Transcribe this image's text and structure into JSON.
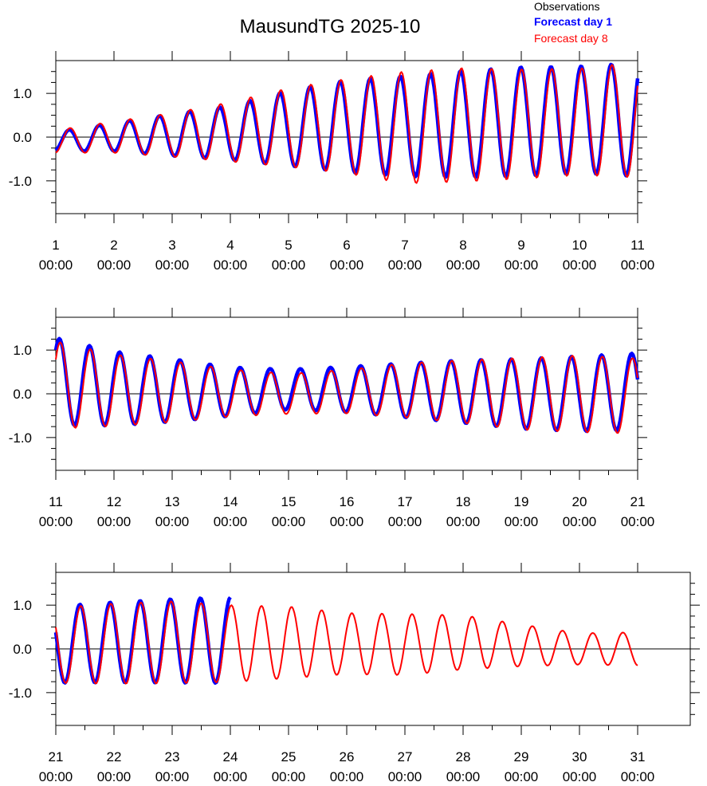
{
  "chart_data": {
    "type": "line",
    "title": "MausundTG 2025-10",
    "legend": {
      "placement": "top-right",
      "entries": [
        {
          "label": "Observations",
          "color": "#000000",
          "bold": false
        },
        {
          "label": "Forecast day 1",
          "color": "#0000ff",
          "bold": true
        },
        {
          "label": "Forecast day 8",
          "color": "#ff0000",
          "bold": false
        }
      ]
    },
    "y_ticks": [
      1.0,
      0.0,
      -1.0
    ],
    "y_tick_labels": [
      "1.0",
      "0.0",
      "-1.0"
    ],
    "ylim": [
      -1.75,
      1.75
    ],
    "grid": false,
    "tidal": {
      "cycles_per_day": 1.932,
      "forecast_day1_color": "#0000ff",
      "forecast_day8_color": "#ff0000"
    },
    "panels": [
      {
        "xlim": [
          1,
          11
        ],
        "tick_days": [
          "1",
          "2",
          "3",
          "4",
          "5",
          "6",
          "7",
          "8",
          "9",
          "10",
          "11"
        ],
        "tick_time": "00:00",
        "series": [
          {
            "name": "Forecast day 1",
            "x_range": [
              1,
              11
            ],
            "amplitude_days": [
              1,
              2,
              3,
              4,
              5,
              6,
              7,
              8,
              9,
              10,
              11
            ],
            "amplitude": [
              0.22,
              0.32,
              0.48,
              0.62,
              0.86,
              1.05,
              1.15,
              1.22,
              1.25,
              1.22,
              1.3
            ],
            "mean": [
              -0.1,
              0.0,
              0.05,
              0.1,
              0.2,
              0.25,
              0.25,
              0.3,
              0.35,
              0.4,
              0.4
            ]
          },
          {
            "name": "Forecast day 8",
            "x_range": [
              1,
              11
            ],
            "amplitude_days": [
              1,
              2,
              3,
              4,
              5,
              6,
              7,
              8,
              9,
              10,
              11
            ],
            "amplitude": [
              0.26,
              0.36,
              0.5,
              0.68,
              0.9,
              1.08,
              1.28,
              1.3,
              1.25,
              1.22,
              1.32
            ],
            "mean": [
              -0.1,
              0.0,
              0.05,
              0.12,
              0.22,
              0.25,
              0.22,
              0.28,
              0.3,
              0.35,
              0.4
            ]
          }
        ]
      },
      {
        "xlim": [
          11,
          21
        ],
        "tick_days": [
          "11",
          "12",
          "13",
          "14",
          "15",
          "16",
          "17",
          "18",
          "19",
          "20",
          "21"
        ],
        "tick_time": "00:00",
        "series": [
          {
            "name": "Forecast day 1",
            "x_range": [
              11,
              21
            ],
            "amplitude_days": [
              11,
              12,
              13,
              14,
              15,
              16,
              17,
              18,
              19,
              20,
              21
            ],
            "amplitude": [
              1.0,
              0.85,
              0.72,
              0.56,
              0.46,
              0.52,
              0.62,
              0.72,
              0.8,
              0.86,
              0.88
            ],
            "mean": [
              0.28,
              0.12,
              0.08,
              0.05,
              0.1,
              0.1,
              0.08,
              0.05,
              0.0,
              0.0,
              0.05
            ]
          },
          {
            "name": "Forecast day 8",
            "x_range": [
              11,
              21
            ],
            "amplitude_days": [
              11,
              12,
              13,
              14,
              15,
              16,
              17,
              18,
              19,
              20,
              21
            ],
            "amplitude": [
              1.0,
              0.82,
              0.7,
              0.54,
              0.46,
              0.5,
              0.62,
              0.72,
              0.82,
              0.88,
              0.86
            ],
            "mean": [
              0.2,
              0.08,
              0.05,
              0.02,
              0.0,
              0.05,
              0.08,
              0.05,
              0.0,
              0.0,
              -0.05
            ]
          }
        ]
      },
      {
        "xlim": [
          21,
          31
        ],
        "tick_days": [
          "21",
          "22",
          "23",
          "24",
          "25",
          "26",
          "27",
          "28",
          "29",
          "30",
          "31"
        ],
        "tick_time": "00:00",
        "series": [
          {
            "name": "Forecast day 1",
            "x_range": [
              21,
              24
            ],
            "amplitude_days": [
              21,
              22,
              23,
              24
            ],
            "amplitude": [
              0.88,
              0.92,
              0.96,
              0.98
            ],
            "mean": [
              0.1,
              0.15,
              0.18,
              0.2
            ]
          },
          {
            "name": "Forecast day 8",
            "x_range": [
              21,
              31
            ],
            "amplitude_days": [
              21,
              22,
              23,
              24,
              25,
              26,
              27,
              28,
              29,
              30,
              31
            ],
            "amplitude": [
              0.86,
              0.92,
              0.94,
              0.88,
              0.82,
              0.7,
              0.7,
              0.62,
              0.48,
              0.36,
              0.38
            ],
            "mean": [
              0.08,
              0.12,
              0.15,
              0.12,
              0.15,
              0.12,
              0.1,
              0.15,
              0.08,
              0.0,
              0.0
            ]
          }
        ]
      }
    ]
  }
}
